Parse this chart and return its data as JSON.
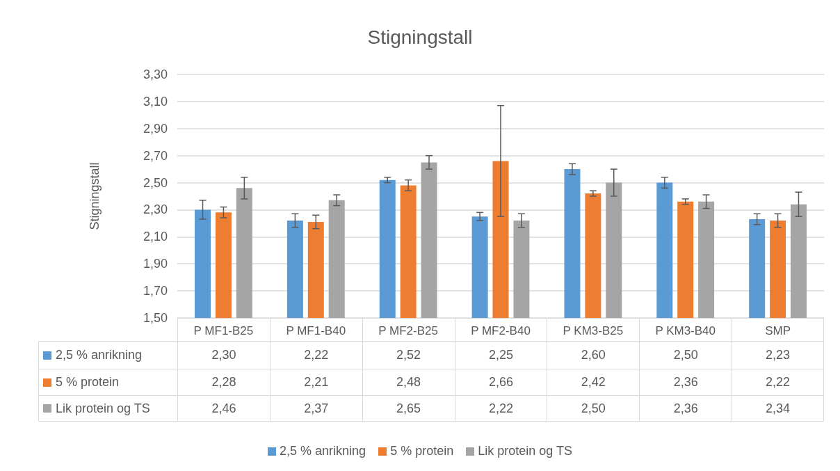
{
  "chart_data": {
    "type": "bar",
    "title": "Stigningstall",
    "ylabel": "Stigningstall",
    "categories": [
      "P MF1-B25",
      "P MF1-B40",
      "P MF2-B25",
      "P MF2-B40",
      "P KM3-B25",
      "P KM3-B40",
      "SMP"
    ],
    "series": [
      {
        "name": "2,5 % anrikning",
        "color": "#5b9bd5",
        "values": [
          2.3,
          2.22,
          2.52,
          2.25,
          2.6,
          2.5,
          2.23
        ],
        "errors": [
          0.07,
          0.05,
          0.02,
          0.03,
          0.04,
          0.04,
          0.04
        ],
        "value_labels": [
          "2,30",
          "2,22",
          "2,52",
          "2,25",
          "2,60",
          "2,50",
          "2,23"
        ]
      },
      {
        "name": "5 % protein",
        "color": "#ed7d31",
        "values": [
          2.28,
          2.21,
          2.48,
          2.66,
          2.42,
          2.36,
          2.22
        ],
        "errors": [
          0.04,
          0.05,
          0.04,
          0.41,
          0.02,
          0.02,
          0.05
        ],
        "value_labels": [
          "2,28",
          "2,21",
          "2,48",
          "2,66",
          "2,42",
          "2,36",
          "2,22"
        ]
      },
      {
        "name": "Lik protein og TS",
        "color": "#a5a5a5",
        "values": [
          2.46,
          2.37,
          2.65,
          2.22,
          2.5,
          2.36,
          2.34
        ],
        "errors": [
          0.08,
          0.04,
          0.05,
          0.05,
          0.1,
          0.05,
          0.09
        ],
        "value_labels": [
          "2,46",
          "2,37",
          "2,65",
          "2,22",
          "2,50",
          "2,36",
          "2,34"
        ]
      }
    ],
    "ylim": [
      1.5,
      3.3
    ],
    "yticks": [
      {
        "value": 1.5,
        "label": "1,50"
      },
      {
        "value": 1.7,
        "label": "1,70"
      },
      {
        "value": 1.9,
        "label": "1,90"
      },
      {
        "value": 2.1,
        "label": "2,10"
      },
      {
        "value": 2.3,
        "label": "2,30"
      },
      {
        "value": 2.5,
        "label": "2,50"
      },
      {
        "value": 2.7,
        "label": "2,70"
      },
      {
        "value": 2.9,
        "label": "2,90"
      },
      {
        "value": 3.1,
        "label": "3,10"
      },
      {
        "value": 3.3,
        "label": "3,30"
      }
    ],
    "grid": "y",
    "legend": "bottom"
  }
}
